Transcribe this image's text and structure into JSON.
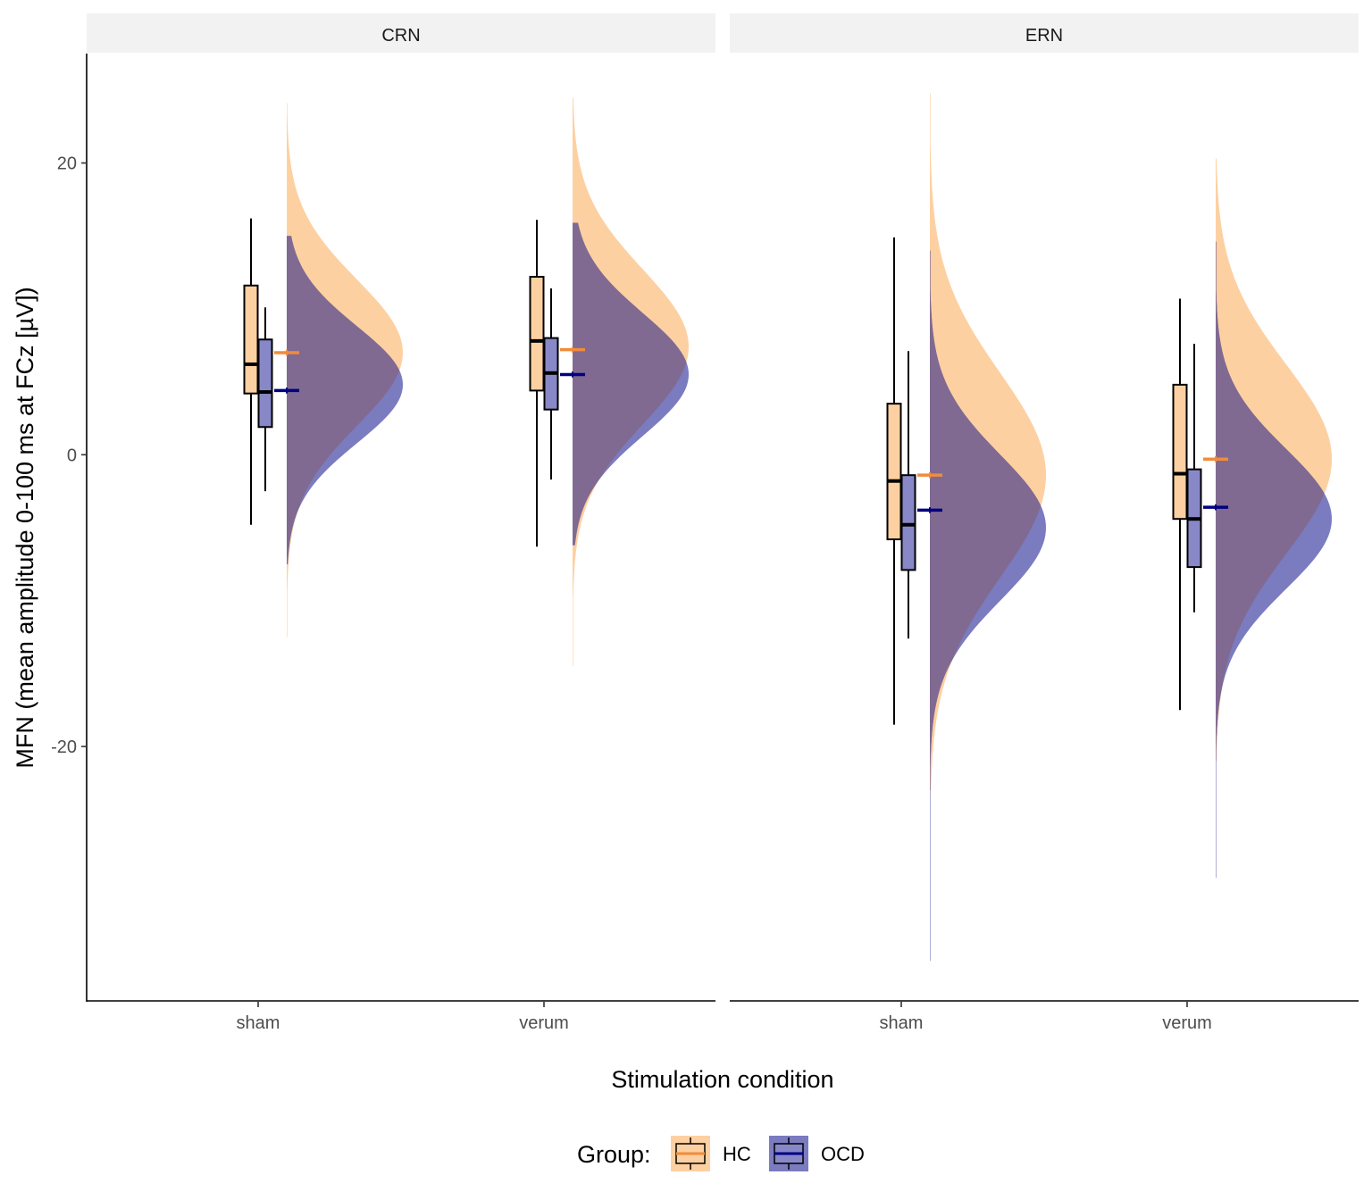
{
  "chart_data": {
    "type": "raincloud",
    "xlabel": "Stimulation condition",
    "ylabel": "MFN (mean amplitude 0-100 ms at FCz [µV])",
    "ylim": [
      -37.5,
      27.5
    ],
    "yticks": [
      -20,
      0,
      20
    ],
    "ytick_labels": [
      "-20",
      "0",
      "20"
    ],
    "categories": [
      "sham",
      "verum"
    ],
    "legend": {
      "title": "Group:",
      "position": "bottom",
      "entries": [
        {
          "key": "HC",
          "label": "HC",
          "fill": "#FDD0A2",
          "line": "#F08C3C"
        },
        {
          "key": "OCD",
          "label": "OCD",
          "fill": "#7B7BC0",
          "line": "#000080"
        }
      ]
    },
    "colors": {
      "HC_density": "#FDD0A2",
      "OCD_density": "#7B7BC0",
      "overlap": "#806A91",
      "HC_box": "#FDD0A2",
      "OCD_box": "#8888C8",
      "HC_mean": "#F08C3C",
      "OCD_mean": "#000080",
      "strip": "#F2F2F2"
    },
    "panels": [
      {
        "strip": "CRN",
        "groups": [
          {
            "condition": "sham",
            "HC": {
              "whisker_low": -4.8,
              "q1": 4.2,
              "median": 6.2,
              "q3": 11.6,
              "whisker_high": 16.2,
              "mean": 7.0,
              "mean_se": 0.2,
              "density": {
                "min": -12.5,
                "max": 24.1,
                "mode": 7.0,
                "sd": 5.0
              }
            },
            "OCD": {
              "whisker_low": -2.5,
              "q1": 1.9,
              "median": 4.3,
              "q3": 7.9,
              "whisker_high": 10.1,
              "mean": 4.4,
              "mean_se": 0.2,
              "density": {
                "min": -7.5,
                "max": 15.0,
                "mode": 4.8,
                "sd": 4.0
              }
            }
          },
          {
            "condition": "verum",
            "HC": {
              "whisker_low": -6.3,
              "q1": 4.4,
              "median": 7.8,
              "q3": 12.2,
              "whisker_high": 16.1,
              "mean": 7.2,
              "mean_se": 0.2,
              "density": {
                "min": -14.5,
                "max": 24.5,
                "mode": 7.4,
                "sd": 5.3
              }
            },
            "OCD": {
              "whisker_low": -1.7,
              "q1": 3.1,
              "median": 5.6,
              "q3": 8.0,
              "whisker_high": 11.4,
              "mean": 5.5,
              "mean_se": 0.2,
              "density": {
                "min": -6.2,
                "max": 15.9,
                "mode": 5.5,
                "sd": 4.2
              }
            }
          }
        ]
      },
      {
        "strip": "ERN",
        "groups": [
          {
            "condition": "sham",
            "HC": {
              "whisker_low": -18.5,
              "q1": -5.8,
              "median": -1.8,
              "q3": 3.5,
              "whisker_high": 14.9,
              "mean": -1.4,
              "mean_se": 0.2,
              "density": {
                "min": -23.0,
                "max": 24.8,
                "mode": -1.4,
                "sd": 7.0
              }
            },
            "OCD": {
              "whisker_low": -12.6,
              "q1": -7.9,
              "median": -4.8,
              "q3": -1.4,
              "whisker_high": 7.1,
              "mean": -3.8,
              "mean_se": 0.2,
              "density": {
                "min": -34.7,
                "max": 14.0,
                "mode": -5.0,
                "sd": 5.0
              }
            }
          },
          {
            "condition": "verum",
            "HC": {
              "whisker_low": -17.5,
              "q1": -4.4,
              "median": -1.3,
              "q3": 4.8,
              "whisker_high": 10.7,
              "mean": -0.3,
              "mean_se": 0.2,
              "density": {
                "min": -21.0,
                "max": 20.3,
                "mode": -0.3,
                "sd": 6.5
              }
            },
            "OCD": {
              "whisker_low": -10.8,
              "q1": -7.7,
              "median": -4.4,
              "q3": -1.0,
              "whisker_high": 7.6,
              "mean": -3.6,
              "mean_se": 0.2,
              "density": {
                "min": -29.0,
                "max": 14.6,
                "mode": -4.4,
                "sd": 4.8
              }
            }
          }
        ]
      }
    ]
  }
}
